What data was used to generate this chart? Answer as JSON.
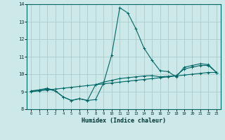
{
  "title": "",
  "xlabel": "Humidex (Indice chaleur)",
  "ylabel": "",
  "bg_color": "#cce8e8",
  "grid_color": "#aacccc",
  "line_color": "#006666",
  "xlim": [
    -0.5,
    23.5
  ],
  "ylim": [
    8.0,
    14.0
  ],
  "yticks": [
    8,
    9,
    10,
    11,
    12,
    13,
    14
  ],
  "xticks": [
    0,
    1,
    2,
    3,
    4,
    5,
    6,
    7,
    8,
    9,
    10,
    11,
    12,
    13,
    14,
    15,
    16,
    17,
    18,
    19,
    20,
    21,
    22,
    23
  ],
  "series1_x": [
    0,
    1,
    2,
    3,
    4,
    5,
    6,
    7,
    8,
    9,
    10,
    11,
    12,
    13,
    14,
    15,
    16,
    17,
    18,
    19,
    20,
    21,
    22,
    23
  ],
  "series1_y": [
    9.0,
    9.05,
    9.1,
    9.15,
    9.2,
    9.25,
    9.3,
    9.35,
    9.4,
    9.45,
    9.5,
    9.55,
    9.6,
    9.65,
    9.7,
    9.75,
    9.8,
    9.85,
    9.9,
    9.95,
    10.0,
    10.05,
    10.1,
    10.1
  ],
  "series2_x": [
    0,
    1,
    2,
    3,
    4,
    5,
    6,
    7,
    8,
    9,
    10,
    11,
    12,
    13,
    14,
    15,
    16,
    17,
    18,
    19,
    20,
    21,
    22,
    23
  ],
  "series2_y": [
    9.0,
    9.1,
    9.15,
    9.05,
    8.7,
    8.5,
    8.6,
    8.5,
    9.4,
    9.55,
    9.65,
    9.75,
    9.8,
    9.85,
    9.9,
    9.92,
    9.85,
    9.88,
    9.92,
    10.3,
    10.4,
    10.5,
    10.5,
    10.1
  ],
  "series3_x": [
    0,
    1,
    2,
    3,
    4,
    5,
    6,
    7,
    8,
    9,
    10,
    11,
    12,
    13,
    14,
    15,
    16,
    17,
    18,
    19,
    20,
    21,
    22,
    23
  ],
  "series3_y": [
    9.05,
    9.1,
    9.2,
    9.05,
    8.7,
    8.5,
    8.6,
    8.5,
    8.55,
    9.5,
    11.1,
    13.8,
    13.5,
    12.6,
    11.5,
    10.8,
    10.2,
    10.15,
    9.85,
    10.4,
    10.5,
    10.6,
    10.55,
    10.1
  ]
}
